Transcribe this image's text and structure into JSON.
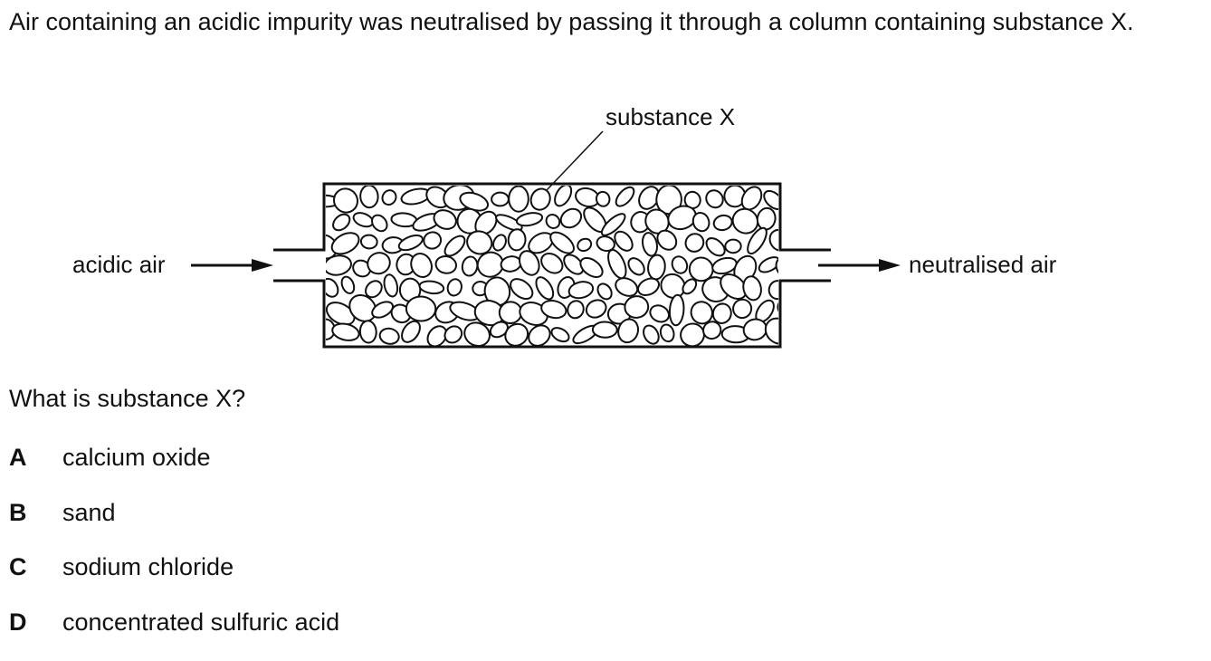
{
  "question": {
    "stem": "Air containing an acidic impurity was neutralised by passing it through a column containing substance X.",
    "prompt": "What is substance X?"
  },
  "diagram": {
    "labels": {
      "substance": "substance X",
      "inlet": "acidic air",
      "outlet": "neutralised air"
    },
    "stroke_color": "#111111"
  },
  "options": [
    {
      "letter": "A",
      "text": "calcium oxide"
    },
    {
      "letter": "B",
      "text": "sand"
    },
    {
      "letter": "C",
      "text": "sodium chloride"
    },
    {
      "letter": "D",
      "text": "concentrated sulfuric acid"
    }
  ]
}
